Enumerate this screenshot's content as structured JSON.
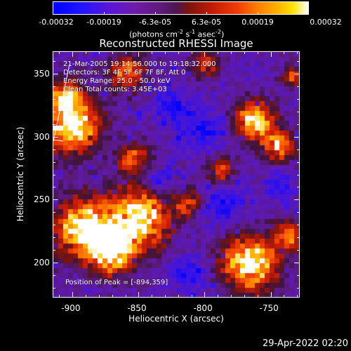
{
  "colorbar": {
    "ticks": [
      "-0.00032",
      "-0.00019",
      "-6.3e-05",
      "6.3e-05",
      "0.00019",
      "0.00032"
    ],
    "units_main": "(photons cm",
    "units_exp1": "-2",
    "units_s": " s",
    "units_exp2": "-1",
    "units_asec": " asec",
    "units_exp3": "-2",
    "units_close": ")",
    "colors": [
      "#0000ff",
      "#5a16d9",
      "#601a7a",
      "#c11a07",
      "#ff7c00",
      "#ffe100",
      "#ffffff"
    ]
  },
  "title": "Reconstructed RHESSI Image",
  "annotations": {
    "time": "21-Mar-2005 19:14:56.000 to 19:18:32.000",
    "detectors": "Detectors: 3F 4F 5F 6F 7F 8F, Att 0",
    "energy": "Energy Range: 25.0 - 50.0 keV",
    "clean": "Clean     Total counts: 3.45E+03",
    "peak": "Position of Peak = [-894,359]"
  },
  "axes": {
    "xlabel": "Heliocentric X (arcsec)",
    "ylabel": "Heliocentric Y (arcsec)",
    "xticks": [
      "-900",
      "-850",
      "-800",
      "-750"
    ],
    "yticks": [
      "350",
      "300",
      "250",
      "200"
    ],
    "xrange": [
      -915,
      -728
    ],
    "yrange": [
      172,
      368
    ]
  },
  "footer": {
    "timestamp": "29-Apr-2022 02:20"
  }
}
